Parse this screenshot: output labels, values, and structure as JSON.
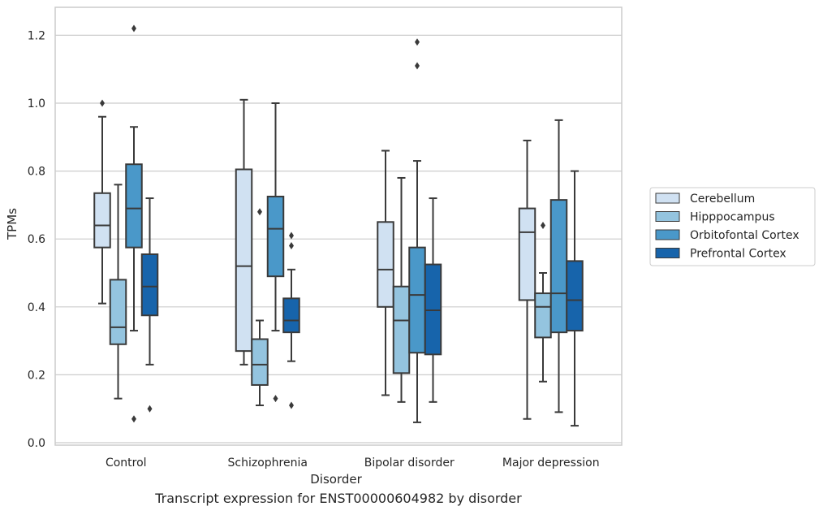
{
  "caption": "Transcript expression for ENST00000604982 by disorder",
  "colors": {
    "Cerebellum": "#d0e1f2",
    "Hipppocampus": "#94c4df",
    "Orbitofontal Cortex": "#4a98c9",
    "Prefrontal Cortex": "#1764ab",
    "box_edge": "#3a3a3a",
    "grid": "#cccccc",
    "frame": "#cccccc"
  },
  "chart_data": {
    "type": "box",
    "title": "",
    "xlabel": "Disorder",
    "ylabel": "TPMs",
    "ylim": [
      0,
      1.28
    ],
    "yticks": [
      0.0,
      0.2,
      0.4,
      0.6,
      0.8,
      1.0,
      1.2
    ],
    "ytick_labels": [
      "0.0",
      "0.2",
      "0.4",
      "0.6",
      "0.8",
      "1.0",
      "1.2"
    ],
    "grid": "horizontal",
    "legend_position": "right",
    "categories": [
      "Control",
      "Schizophrenia",
      "Bipolar disorder",
      "Major depression"
    ],
    "series": [
      {
        "name": "Cerebellum",
        "boxes": [
          {
            "whislo": 0.41,
            "q1": 0.575,
            "med": 0.64,
            "q3": 0.735,
            "whishi": 0.96,
            "fliers": [
              1.0
            ]
          },
          {
            "whislo": 0.23,
            "q1": 0.27,
            "med": 0.52,
            "q3": 0.805,
            "whishi": 1.01,
            "fliers": []
          },
          {
            "whislo": 0.14,
            "q1": 0.4,
            "med": 0.51,
            "q3": 0.65,
            "whishi": 0.86,
            "fliers": []
          },
          {
            "whislo": 0.07,
            "q1": 0.42,
            "med": 0.62,
            "q3": 0.69,
            "whishi": 0.89,
            "fliers": []
          }
        ]
      },
      {
        "name": "Hipppocampus",
        "boxes": [
          {
            "whislo": 0.13,
            "q1": 0.29,
            "med": 0.34,
            "q3": 0.48,
            "whishi": 0.76,
            "fliers": []
          },
          {
            "whislo": 0.11,
            "q1": 0.17,
            "med": 0.23,
            "q3": 0.305,
            "whishi": 0.36,
            "fliers": [
              0.68
            ]
          },
          {
            "whislo": 0.12,
            "q1": 0.205,
            "med": 0.36,
            "q3": 0.46,
            "whishi": 0.78,
            "fliers": []
          },
          {
            "whislo": 0.18,
            "q1": 0.31,
            "med": 0.4,
            "q3": 0.44,
            "whishi": 0.5,
            "fliers": [
              0.64
            ]
          }
        ]
      },
      {
        "name": "Orbitofontal Cortex",
        "boxes": [
          {
            "whislo": 0.33,
            "q1": 0.575,
            "med": 0.69,
            "q3": 0.82,
            "whishi": 0.93,
            "fliers": [
              0.07,
              1.22
            ]
          },
          {
            "whislo": 0.33,
            "q1": 0.49,
            "med": 0.63,
            "q3": 0.725,
            "whishi": 1.0,
            "fliers": [
              0.13
            ]
          },
          {
            "whislo": 0.06,
            "q1": 0.265,
            "med": 0.435,
            "q3": 0.575,
            "whishi": 0.83,
            "fliers": [
              1.11,
              1.18
            ]
          },
          {
            "whislo": 0.09,
            "q1": 0.325,
            "med": 0.44,
            "q3": 0.715,
            "whishi": 0.95,
            "fliers": []
          }
        ]
      },
      {
        "name": "Prefrontal Cortex",
        "boxes": [
          {
            "whislo": 0.23,
            "q1": 0.375,
            "med": 0.46,
            "q3": 0.555,
            "whishi": 0.72,
            "fliers": [
              0.1
            ]
          },
          {
            "whislo": 0.24,
            "q1": 0.325,
            "med": 0.36,
            "q3": 0.425,
            "whishi": 0.51,
            "fliers": [
              0.11,
              0.58,
              0.61
            ]
          },
          {
            "whislo": 0.12,
            "q1": 0.26,
            "med": 0.39,
            "q3": 0.525,
            "whishi": 0.72,
            "fliers": []
          },
          {
            "whislo": 0.05,
            "q1": 0.33,
            "med": 0.42,
            "q3": 0.535,
            "whishi": 0.8,
            "fliers": []
          }
        ]
      }
    ]
  }
}
